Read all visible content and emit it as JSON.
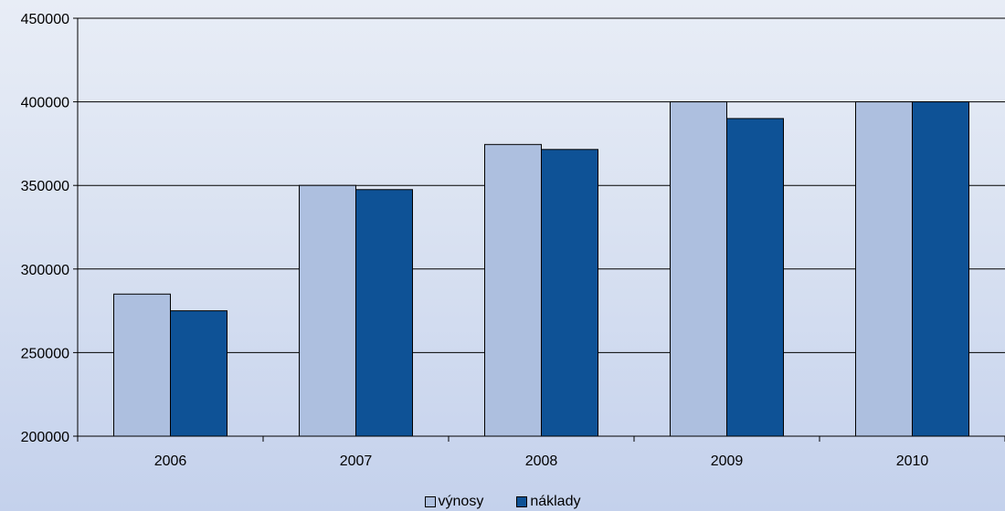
{
  "chart_data": {
    "type": "bar",
    "title": "",
    "xlabel": "",
    "ylabel": "",
    "categories": [
      "2006",
      "2007",
      "2008",
      "2009",
      "2010"
    ],
    "series": [
      {
        "name": "výnosy",
        "color": "#adbfdf",
        "values": [
          285000,
          350000,
          374500,
          400000,
          400000
        ]
      },
      {
        "name": "náklady",
        "color": "#0e5296",
        "values": [
          275000,
          347500,
          371500,
          390000,
          400000
        ]
      }
    ],
    "ylim": [
      200000,
      450000
    ],
    "yticks": [
      "200000",
      "250000",
      "300000",
      "350000",
      "400000",
      "450000"
    ],
    "grid": true,
    "legend_position": "bottom-center"
  }
}
